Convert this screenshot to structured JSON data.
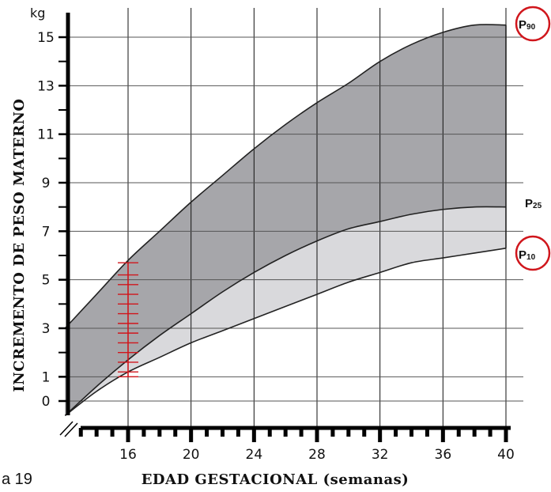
{
  "side_text": "a 19",
  "chart_data": {
    "type": "area",
    "unit_label": "kg",
    "xlabel": "EDAD GESTACIONAL (semanas)",
    "ylabel": "INCREMENTO DE PESO MATERNO",
    "xlim": [
      12,
      40
    ],
    "ylim": [
      0,
      15.5
    ],
    "x_ticks": [
      16,
      20,
      24,
      28,
      32,
      36,
      40
    ],
    "y_ticks": [
      0,
      1,
      3,
      5,
      7,
      9,
      11,
      13,
      15
    ],
    "grid": true,
    "colors": {
      "upper_band": "#a6a6aa",
      "lower_band": "#d9d9dc",
      "line": "#222222",
      "highlight": "#d0161c"
    },
    "series": [
      {
        "name": "P90",
        "label_main": "P",
        "label_sub": "90",
        "x": [
          12,
          14,
          16,
          18,
          20,
          22,
          24,
          26,
          28,
          30,
          32,
          34,
          36,
          38,
          40
        ],
        "y": [
          3.0,
          4.4,
          5.8,
          7.0,
          8.2,
          9.3,
          10.4,
          11.4,
          12.3,
          13.1,
          14.0,
          14.7,
          15.2,
          15.5,
          15.5
        ]
      },
      {
        "name": "P25",
        "label_main": "P",
        "label_sub": "25",
        "x": [
          12,
          14,
          16,
          18,
          20,
          22,
          24,
          26,
          28,
          30,
          32,
          34,
          36,
          38,
          40
        ],
        "y": [
          -0.6,
          0.6,
          1.7,
          2.7,
          3.6,
          4.5,
          5.3,
          6.0,
          6.6,
          7.1,
          7.4,
          7.7,
          7.9,
          8.0,
          8.0
        ]
      },
      {
        "name": "P10",
        "label_main": "P",
        "label_sub": "10",
        "x": [
          12,
          14,
          16,
          18,
          20,
          22,
          24,
          26,
          28,
          30,
          32,
          34,
          36,
          38,
          40
        ],
        "y": [
          -0.6,
          0.4,
          1.2,
          1.8,
          2.4,
          2.9,
          3.4,
          3.9,
          4.4,
          4.9,
          5.3,
          5.7,
          5.9,
          6.1,
          6.3
        ]
      }
    ],
    "highlight_marks": {
      "x": 16,
      "y_range": [
        1.0,
        5.7
      ],
      "ticks": [
        1.0,
        1.2,
        1.6,
        2.0,
        2.4,
        2.8,
        3.2,
        3.6,
        4.0,
        4.4,
        4.8,
        5.2,
        5.7
      ]
    },
    "circled_labels": [
      "P90",
      "P10"
    ]
  }
}
